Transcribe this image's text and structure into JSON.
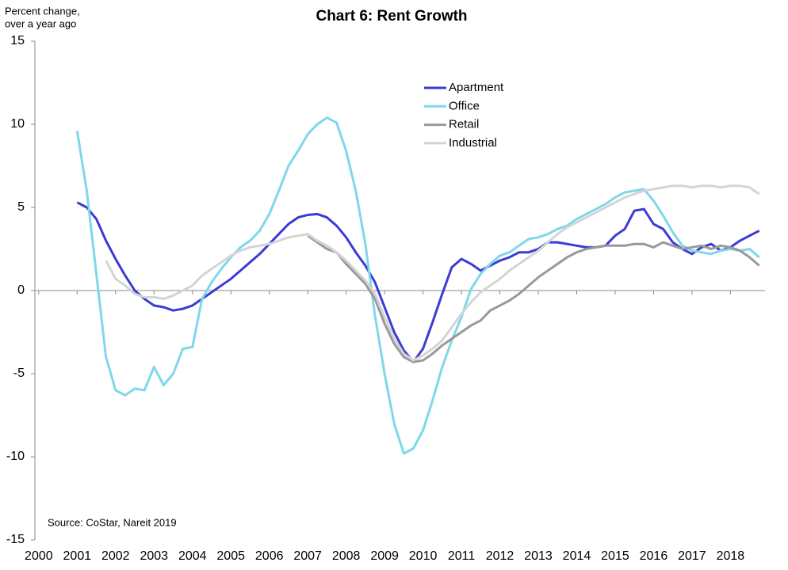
{
  "chart_data": {
    "type": "line",
    "title": "Chart 6: Rent Growth",
    "y_label": [
      "Percent change,",
      "over a year ago"
    ],
    "source": "Source: CoStar, Nareit 2019",
    "legend": "upper center",
    "xlim": [
      1999.9,
      2018.9
    ],
    "xticks": [
      2000,
      2001,
      2002,
      2003,
      2004,
      2005,
      2006,
      2007,
      2008,
      2009,
      2010,
      2011,
      2012,
      2013,
      2014,
      2015,
      2016,
      2017,
      2018
    ],
    "ylim": [
      -15,
      15
    ],
    "yticks": [
      -15,
      -10,
      -5,
      0,
      5,
      10,
      15
    ],
    "grid": false,
    "x": [
      2001,
      2001.25,
      2001.5,
      2001.75,
      2002,
      2002.25,
      2002.5,
      2002.75,
      2003,
      2003.25,
      2003.5,
      2003.75,
      2004,
      2004.25,
      2004.5,
      2004.75,
      2005,
      2005.25,
      2005.5,
      2005.75,
      2006,
      2006.25,
      2006.5,
      2006.75,
      2007,
      2007.25,
      2007.5,
      2007.75,
      2008,
      2008.25,
      2008.5,
      2008.75,
      2009,
      2009.25,
      2009.5,
      2009.75,
      2010,
      2010.25,
      2010.5,
      2010.75,
      2011,
      2011.25,
      2011.5,
      2011.75,
      2012,
      2012.25,
      2012.5,
      2012.75,
      2013,
      2013.25,
      2013.5,
      2013.75,
      2014,
      2014.25,
      2014.5,
      2014.75,
      2015,
      2015.25,
      2015.5,
      2015.75,
      2016,
      2016.25,
      2016.5,
      2016.75,
      2017,
      2017.25,
      2017.5,
      2017.75,
      2018,
      2018.25,
      2018.5,
      2018.75
    ],
    "series": [
      {
        "name": "Apartment",
        "color": "#3b3bd6",
        "values": [
          5.3,
          5.0,
          4.3,
          3.0,
          1.9,
          0.9,
          0.0,
          -0.5,
          -0.9,
          -1.0,
          -1.2,
          -1.1,
          -0.9,
          -0.5,
          -0.1,
          0.3,
          0.7,
          1.2,
          1.7,
          2.2,
          2.8,
          3.4,
          4.0,
          4.4,
          4.55,
          4.6,
          4.4,
          3.9,
          3.2,
          2.3,
          1.5,
          0.5,
          -1.0,
          -2.5,
          -3.6,
          -4.3,
          -3.5,
          -1.9,
          -0.2,
          1.4,
          1.9,
          1.6,
          1.2,
          1.5,
          1.8,
          2.0,
          2.3,
          2.3,
          2.5,
          2.9,
          2.9,
          2.8,
          2.7,
          2.6,
          2.6,
          2.7,
          3.3,
          3.7,
          4.8,
          4.9,
          4.0,
          3.7,
          2.9,
          2.5,
          2.2,
          2.6,
          2.8,
          2.4,
          2.6,
          3.0,
          3.3,
          3.6
        ]
      },
      {
        "name": "Office",
        "color": "#7fd7ea",
        "values": [
          9.6,
          6.0,
          1.0,
          -4.0,
          -6.0,
          -6.3,
          -5.9,
          -6.0,
          -4.6,
          -5.7,
          -5.0,
          -3.5,
          -3.4,
          -0.5,
          0.5,
          1.3,
          2.0,
          2.6,
          3.0,
          3.6,
          4.6,
          6.0,
          7.5,
          8.4,
          9.4,
          10.0,
          10.4,
          10.1,
          8.4,
          6.0,
          2.8,
          -1.5,
          -5.0,
          -8.0,
          -9.8,
          -9.5,
          -8.4,
          -6.6,
          -4.6,
          -3.0,
          -1.6,
          0.1,
          1.0,
          1.6,
          2.1,
          2.3,
          2.7,
          3.1,
          3.2,
          3.4,
          3.7,
          3.9,
          4.3,
          4.6,
          4.9,
          5.2,
          5.6,
          5.9,
          6.0,
          6.1,
          5.4,
          4.5,
          3.5,
          2.7,
          2.4,
          2.3,
          2.2,
          2.4,
          2.5,
          2.4,
          2.5,
          2.0
        ]
      },
      {
        "name": "Retail",
        "color": "#999999",
        "values": [
          null,
          null,
          null,
          null,
          null,
          null,
          null,
          null,
          null,
          null,
          null,
          null,
          null,
          null,
          null,
          null,
          null,
          null,
          null,
          null,
          null,
          null,
          null,
          null,
          3.3,
          2.9,
          2.5,
          2.3,
          1.6,
          1.0,
          0.4,
          -0.5,
          -2.0,
          -3.2,
          -4.0,
          -4.3,
          -4.2,
          -3.8,
          -3.3,
          -2.9,
          -2.5,
          -2.1,
          -1.8,
          -1.2,
          -0.9,
          -0.6,
          -0.2,
          0.3,
          0.8,
          1.2,
          1.6,
          2.0,
          2.3,
          2.5,
          2.6,
          2.7,
          2.7,
          2.7,
          2.8,
          2.8,
          2.6,
          2.9,
          2.7,
          2.5,
          2.6,
          2.7,
          2.5,
          2.7,
          2.6,
          2.4,
          2.0,
          1.5
        ]
      },
      {
        "name": "Industrial",
        "color": "#d4d4d4",
        "values": [
          null,
          null,
          null,
          1.8,
          0.7,
          0.3,
          -0.2,
          -0.4,
          -0.4,
          -0.5,
          -0.3,
          0.0,
          0.3,
          0.9,
          1.3,
          1.7,
          2.1,
          2.4,
          2.6,
          2.7,
          2.8,
          3.0,
          3.2,
          3.3,
          3.4,
          3.0,
          2.7,
          2.3,
          1.8,
          1.2,
          0.6,
          -0.2,
          -1.6,
          -2.9,
          -3.8,
          -4.2,
          -3.9,
          -3.5,
          -3.0,
          -2.2,
          -1.4,
          -0.7,
          -0.1,
          0.3,
          0.7,
          1.2,
          1.6,
          2.0,
          2.4,
          2.9,
          3.4,
          3.8,
          4.1,
          4.4,
          4.7,
          5.0,
          5.3,
          5.6,
          5.8,
          6.0,
          6.1,
          6.2,
          6.3,
          6.3,
          6.2,
          6.3,
          6.3,
          6.2,
          6.3,
          6.3,
          6.2,
          5.8
        ]
      }
    ]
  }
}
